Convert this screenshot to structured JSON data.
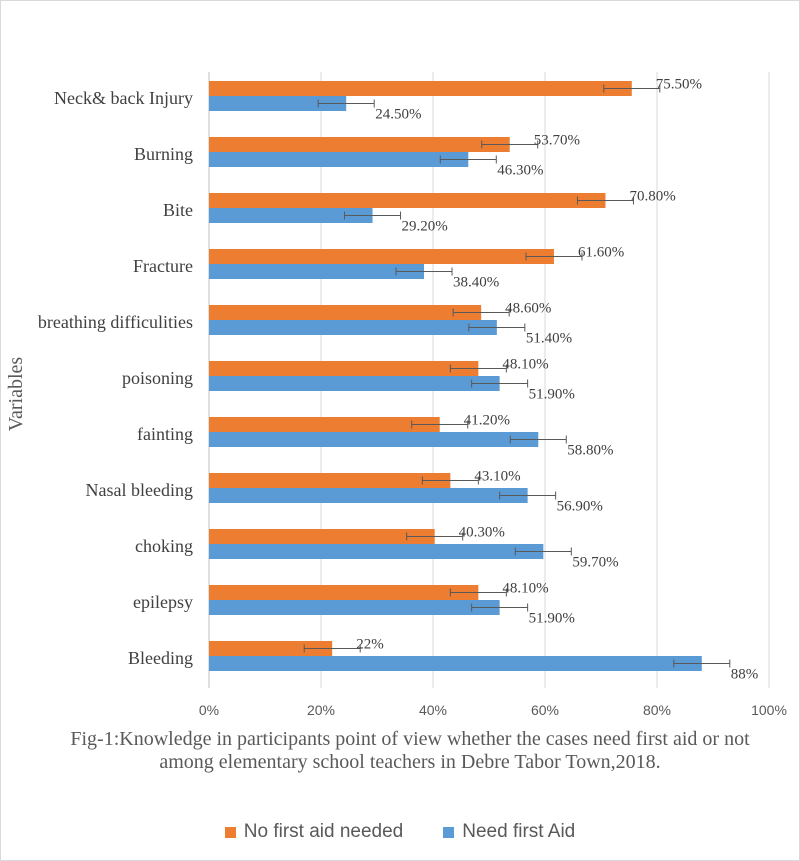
{
  "chart_data": {
    "type": "bar",
    "orientation": "horizontal",
    "categories": [
      "Neck& back Injury",
      "Burning",
      "Bite",
      "Fracture",
      "breathing difficulities",
      "poisoning",
      "fainting",
      "Nasal bleeding",
      "choking",
      "epilepsy",
      "Bleeding"
    ],
    "series": [
      {
        "name": "No first aid needed",
        "color": "#ED7D31",
        "values": [
          75.5,
          53.7,
          70.8,
          61.6,
          48.6,
          48.1,
          41.2,
          43.1,
          40.3,
          48.1,
          22
        ],
        "labels": [
          "75.50%",
          "53.70%",
          "70.80%",
          "61.60%",
          "48.60%",
          "48.10%",
          "41.20%",
          "43.10%",
          "40.30%",
          "48.10%",
          "22%"
        ]
      },
      {
        "name": "Need first Aid",
        "color": "#5B9BD5",
        "values": [
          24.5,
          46.3,
          29.2,
          38.4,
          51.4,
          51.9,
          58.8,
          56.9,
          59.7,
          51.9,
          88
        ],
        "labels": [
          "24.50%",
          "46.30%",
          "29.20%",
          "38.40%",
          "51.40%",
          "51.90%",
          "58.80%",
          "56.90%",
          "59.70%",
          "51.90%",
          "88%"
        ]
      }
    ],
    "error_bar": "5%",
    "xlim": [
      0,
      100
    ],
    "xticks": [
      "0%",
      "20%",
      "40%",
      "60%",
      "80%",
      "100%"
    ],
    "ylabel": "Variables",
    "xlabel": "",
    "grid": "vertical",
    "legend_position": "bottom",
    "caption": "Fig-1:Knowledge in participants point of view whether the cases need first aid or not among elementary school teachers in Debre Tabor Town,2018."
  }
}
